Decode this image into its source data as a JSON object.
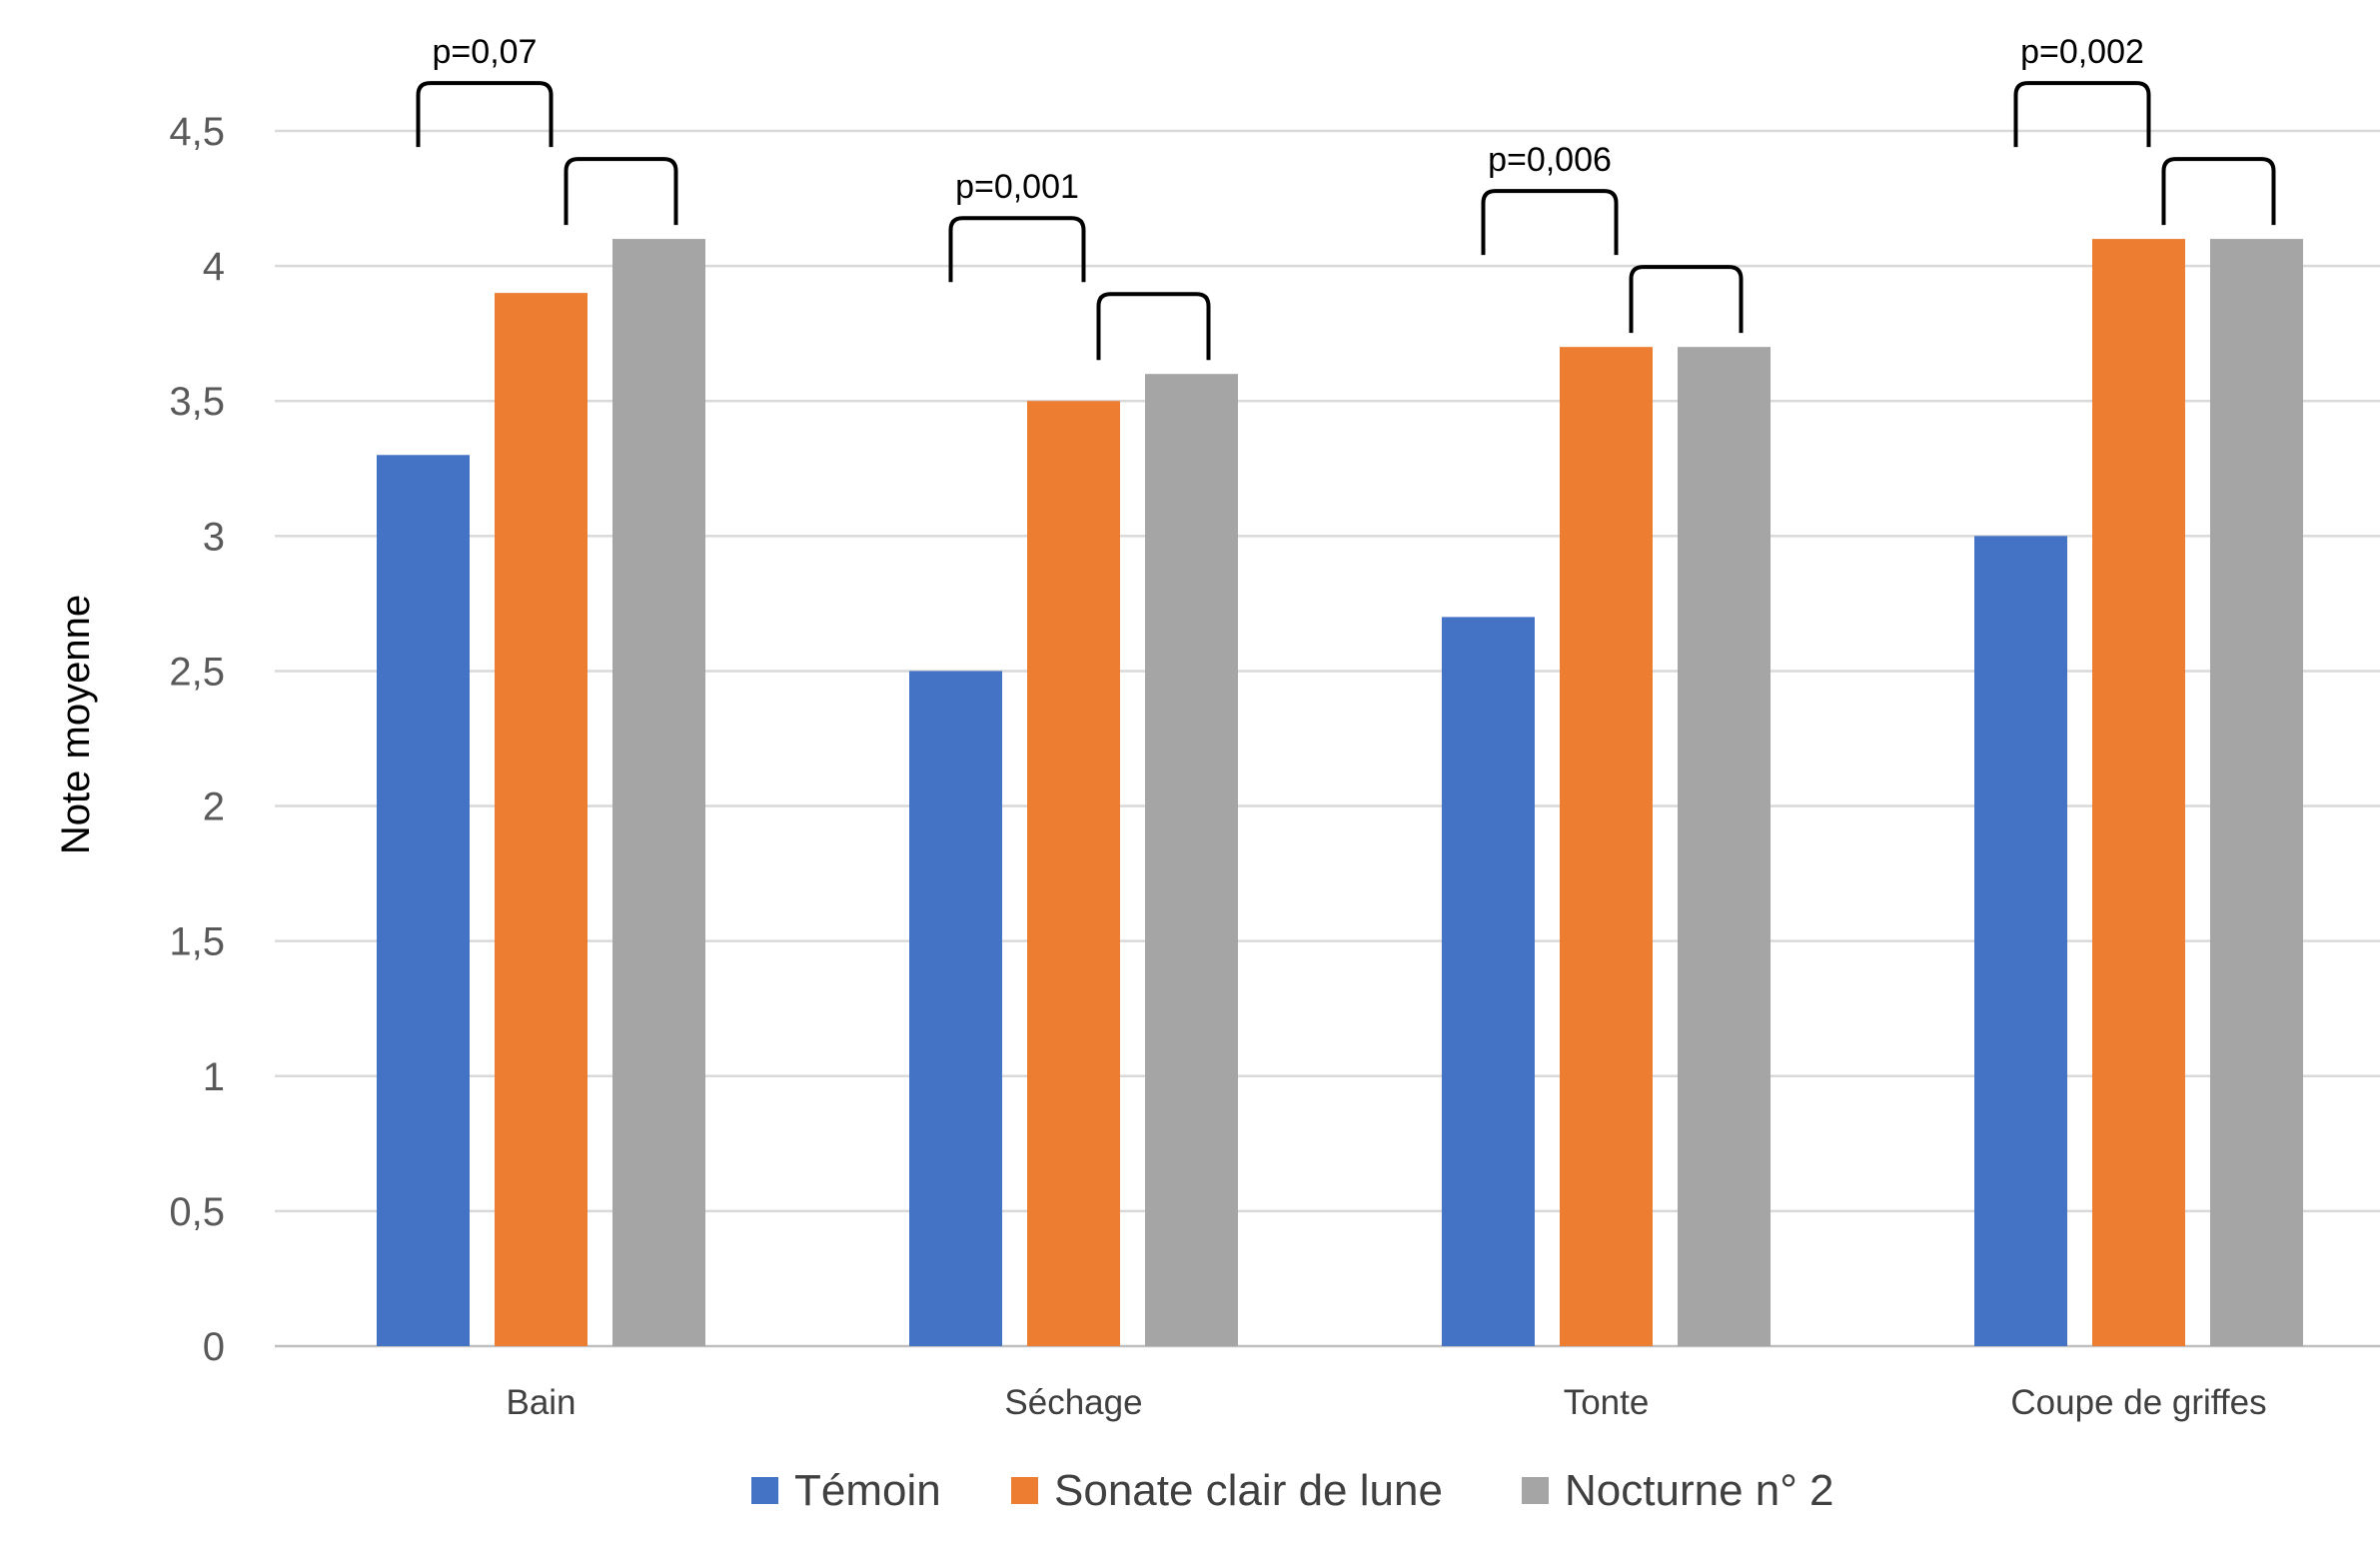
{
  "chart_data": {
    "type": "bar",
    "title": "",
    "xlabel": "",
    "ylabel": "Note moyenne",
    "ylim": [
      0,
      4.5
    ],
    "yticks": [
      "0",
      "0,5",
      "1",
      "1,5",
      "2",
      "2,5",
      "3",
      "3,5",
      "4",
      "4,5"
    ],
    "grid": true,
    "legend_position": "bottom",
    "categories": [
      "Bain",
      "Séchage",
      "Tonte",
      "Coupe de griffes"
    ],
    "series": [
      {
        "name": "Témoin",
        "color": "#4472c4",
        "values": [
          3.3,
          2.5,
          2.7,
          3.0
        ]
      },
      {
        "name": "Sonate clair de lune",
        "color": "#ed7d31",
        "values": [
          3.9,
          3.5,
          3.7,
          4.1
        ]
      },
      {
        "name": "Nocturne n° 2",
        "color": "#a5a5a5",
        "values": [
          4.1,
          3.6,
          3.7,
          4.1
        ]
      }
    ],
    "annotations": [
      {
        "category": "Bain",
        "text": "p=0,07"
      },
      {
        "category": "Séchage",
        "text": "p=0,001"
      },
      {
        "category": "Tonte",
        "text": "p=0,006"
      },
      {
        "category": "Coupe de griffes",
        "text": "p=0,002"
      }
    ]
  }
}
